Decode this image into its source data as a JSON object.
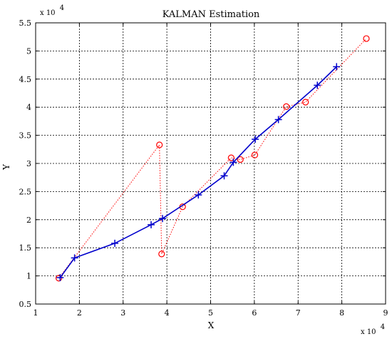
{
  "chart_data": {
    "type": "line",
    "title": "KALMAN Estimation",
    "xlabel": "X",
    "ylabel": "Y",
    "x_multiplier_label": "x 10",
    "x_multiplier_exponent": "4",
    "y_multiplier_label": "x 10",
    "y_multiplier_exponent": "4",
    "xlim": [
      1,
      9
    ],
    "ylim": [
      0.5,
      5.5
    ],
    "x_ticks": [
      1,
      2,
      3,
      4,
      5,
      6,
      7,
      8,
      9
    ],
    "y_ticks": [
      0.5,
      1,
      1.5,
      2,
      2.5,
      3,
      3.5,
      4,
      4.5,
      5,
      5.5
    ],
    "x_tick_labels": [
      "1",
      "2",
      "3",
      "4",
      "5",
      "6",
      "7",
      "8",
      "9"
    ],
    "y_tick_labels": [
      "0.5",
      "1",
      "1.5",
      "2",
      "2.5",
      "3",
      "3.5",
      "4",
      "4.5",
      "5",
      "5.5"
    ],
    "grid": true,
    "series": [
      {
        "marker": "o",
        "line": "dotted",
        "color": "#ff0000",
        "x": [
          1.53,
          3.83,
          3.88,
          4.36,
          5.47,
          5.68,
          6.01,
          6.73,
          7.17,
          8.56
        ],
        "y": [
          0.96,
          3.33,
          1.39,
          2.23,
          3.1,
          3.07,
          3.15,
          4.01,
          4.09,
          5.22
        ]
      },
      {
        "marker": "+",
        "line": "solid",
        "color": "#0000cc",
        "x": [
          1.56,
          1.89,
          2.81,
          3.64,
          3.9,
          4.72,
          5.31,
          5.52,
          6.02,
          6.55,
          7.44,
          7.88
        ],
        "y": [
          0.97,
          1.32,
          1.58,
          1.91,
          2.02,
          2.44,
          2.78,
          3.02,
          3.43,
          3.78,
          4.39,
          4.72
        ]
      }
    ]
  }
}
